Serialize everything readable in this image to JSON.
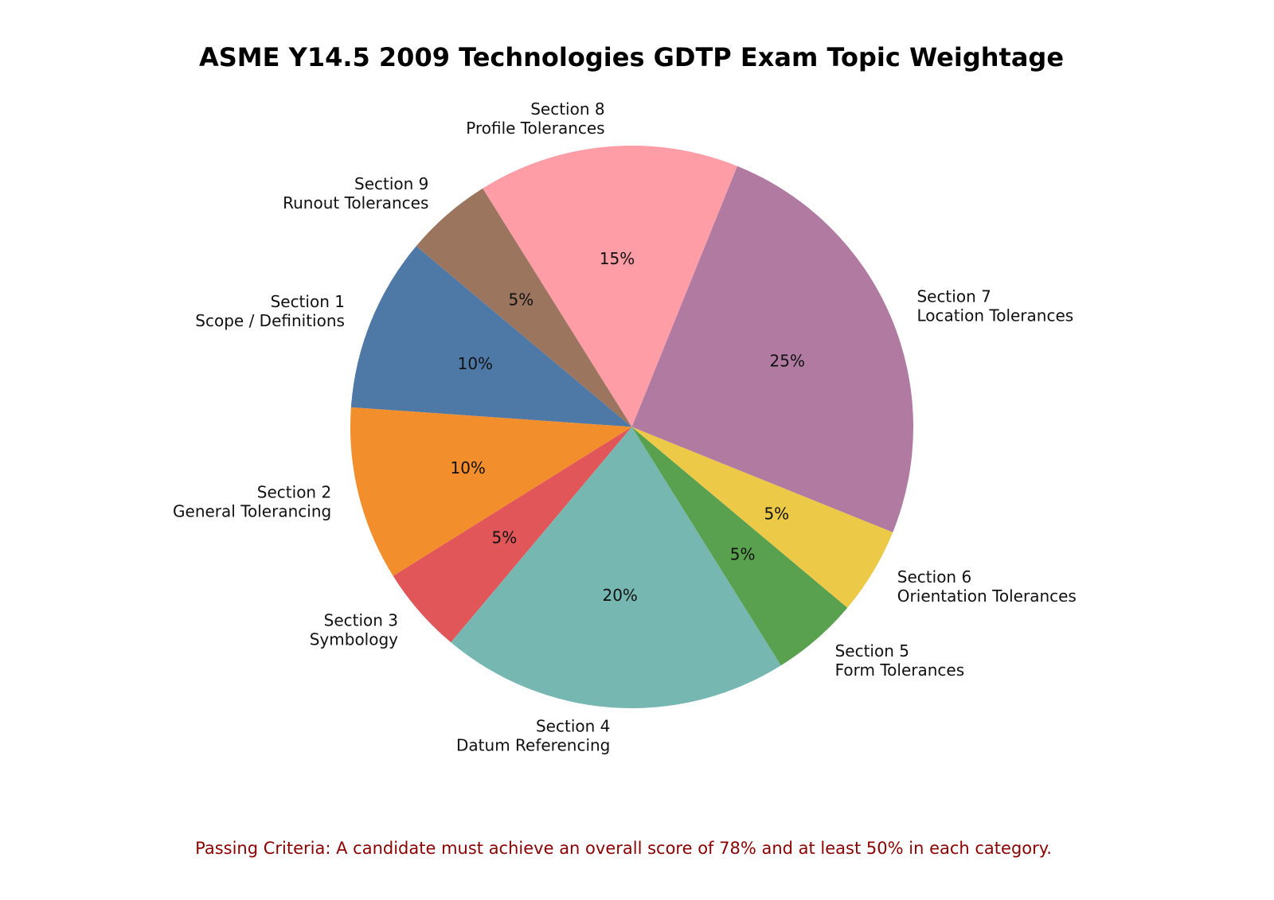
{
  "chart_data": {
    "type": "pie",
    "title": "ASME Y14.5 2009 Technologies GDTP Exam Topic Weightage",
    "start_angle_deg": 140,
    "direction": "counterclockwise",
    "slices": [
      {
        "label": [
          "Section 1",
          "Scope / Definitions"
        ],
        "value": 10,
        "pct_label": "10%",
        "color": "#4e79a7"
      },
      {
        "label": [
          "Section 2",
          "General Tolerancing"
        ],
        "value": 10,
        "pct_label": "10%",
        "color": "#f28e2b"
      },
      {
        "label": [
          "Section 3",
          "Symbology"
        ],
        "value": 5,
        "pct_label": "5%",
        "color": "#e15759"
      },
      {
        "label": [
          "Section 4",
          "Datum Referencing"
        ],
        "value": 20,
        "pct_label": "20%",
        "color": "#76b7b2"
      },
      {
        "label": [
          "Section 5",
          "Form Tolerances"
        ],
        "value": 5,
        "pct_label": "5%",
        "color": "#59a14f"
      },
      {
        "label": [
          "Section 6",
          "Orientation Tolerances"
        ],
        "value": 5,
        "pct_label": "5%",
        "color": "#edc948"
      },
      {
        "label": [
          "Section 7",
          "Location Tolerances"
        ],
        "value": 25,
        "pct_label": "25%",
        "color": "#b07aa1"
      },
      {
        "label": [
          "Section 8",
          "Profile Tolerances"
        ],
        "value": 15,
        "pct_label": "15%",
        "color": "#ff9da7"
      },
      {
        "label": [
          "Section 9",
          "Runout Tolerances"
        ],
        "value": 5,
        "pct_label": "5%",
        "color": "#9c755f"
      }
    ],
    "footnote": "Passing Criteria: A candidate must achieve an overall score of 78% and at least 50% in each category."
  }
}
